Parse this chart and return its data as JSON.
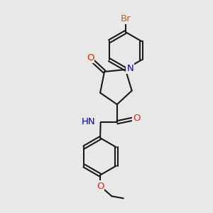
{
  "bg_color": "#e8e8e8",
  "bond_color": "#1a1a1a",
  "bond_width": 1.5,
  "atom_colors": {
    "O": "#ee2200",
    "N": "#0000cc",
    "Br": "#bb6600",
    "C": "#1a1a1a",
    "H": "#1a1a1a"
  },
  "font_size": 9.5
}
